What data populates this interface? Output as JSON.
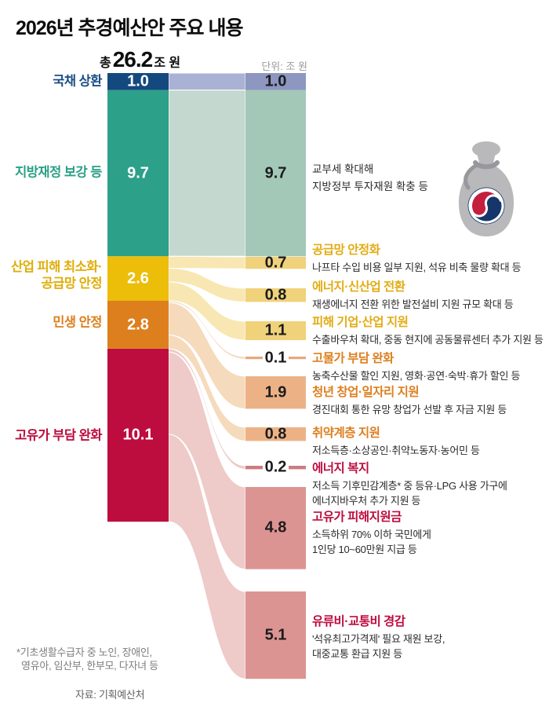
{
  "title": "2026년 추경예산안 주요 내용",
  "header": {
    "total_prefix": "총",
    "total_value": "26.2",
    "total_suffix": "조 원",
    "unit": "단위: 조 원"
  },
  "footnote": {
    "line1": "*기초생활수급자 중 노인, 장애인,",
    "line2": "영유아, 임산부, 한부모, 다자녀 등",
    "source": "자료: 기획예산처"
  },
  "icon": {
    "name": "money-bag-korea-gov-emblem",
    "bag_color": "#b9b9bc",
    "tie_color": "#98989c",
    "emblem_navy": "#16366b",
    "emblem_red": "#c41f3e"
  },
  "chart_data": {
    "type": "sankey",
    "title": "2026년 추경예산안 주요 내용",
    "total_label": "총 26.2조 원",
    "total": 26.2,
    "unit_label": "단위: 조 원",
    "sources": [
      {
        "label": "국채 상환",
        "label_lines": [
          "국채 상환"
        ],
        "value": 1.0,
        "display": "1.0",
        "color": "#14497f",
        "label_color": "#1b4f85",
        "flow_color": "#a9b2d4",
        "right_color": "#8d97c0",
        "heading_color": "#1b4f85"
      },
      {
        "label": "지방재정 보강 등",
        "label_lines": [
          "지방재정 보강 등"
        ],
        "value": 9.7,
        "display": "9.7",
        "color": "#2da089",
        "label_color": "#2aa085",
        "flow_color": "#c4d8cf",
        "right_color": "#a3c8b7",
        "heading_color": "#2aa085"
      },
      {
        "label": "산업 피해 최소화·공급망 안정",
        "label_lines": [
          "산업 피해 최소화·",
          "공급망 안정"
        ],
        "value": 2.6,
        "display": "2.6",
        "color": "#ecbe0a",
        "label_color": "#dfae0b",
        "flow_color": "#f8e7b2",
        "right_color": "#f0d27b",
        "heading_color": "#e2ac14"
      },
      {
        "label": "민생 안정",
        "label_lines": [
          "민생 안정"
        ],
        "value": 2.8,
        "display": "2.8",
        "color": "#dd7f1d",
        "label_color": "#dd7f1e",
        "flow_color": "#f5dabc",
        "right_color": "#ecb286",
        "heading_color": "#dd7f1e"
      },
      {
        "label": "고유가 부담 완화",
        "label_lines": [
          "고유가 부담 완화"
        ],
        "value": 10.1,
        "display": "10.1",
        "color": "#bd0d3f",
        "label_color": "#bd0d3f",
        "flow_color": "#eecac8",
        "right_color": "#dc9492",
        "heading_color": "#bd0d3f"
      }
    ],
    "targets": [
      {
        "source": 0,
        "value": 1.0,
        "display": "1.0",
        "heading": "",
        "desc": []
      },
      {
        "source": 1,
        "value": 9.7,
        "display": "9.7",
        "heading": "",
        "desc": [
          "교부세 확대해",
          "지방정부 투자재원 확충 등"
        ]
      },
      {
        "source": 2,
        "value": 0.7,
        "display": "0.7",
        "heading": "공급망 안정화",
        "desc": [
          "나프타 수입 비용 일부 지원, 석유 비축 물량 확대 등"
        ]
      },
      {
        "source": 2,
        "value": 0.8,
        "display": "0.8",
        "heading": "에너지·신산업 전환",
        "desc": [
          "재생에너지 전환 위한 발전설비 지원 규모 확대 등"
        ]
      },
      {
        "source": 2,
        "value": 1.1,
        "display": "1.1",
        "heading": "피해 기업·산업 지원",
        "desc": [
          "수출바우처 확대, 중동 현지에 공동물류센터 추가 지원 등"
        ]
      },
      {
        "source": 3,
        "value": 0.1,
        "display": "0.1",
        "heading": "고물가 부담 완화",
        "desc": [
          "농축수산물 할인 지원, 영화·공연·숙박·휴가 할인 등"
        ],
        "bar_color": "#e7a87b"
      },
      {
        "source": 3,
        "value": 1.9,
        "display": "1.9",
        "heading": "청년 창업·일자리 지원",
        "desc": [
          "경진대회 통한 유망 창업가 선발 후 자금 지원 등"
        ]
      },
      {
        "source": 3,
        "value": 0.8,
        "display": "0.8",
        "heading": "취약계층 지원",
        "desc": [
          "저소득층·소상공인·취약노동자·농어민 등"
        ]
      },
      {
        "source": 4,
        "value": 0.2,
        "display": "0.2",
        "heading": "에너지 복지",
        "desc": [
          "저소득 기후민감계층* 중 등유·LPG 사용 가구에",
          "에너지바우처 추가 지원 등"
        ],
        "bar_color": "#ca7e81"
      },
      {
        "source": 4,
        "value": 4.8,
        "display": "4.8",
        "heading": "고유가 피해지원금",
        "desc": [
          "소득하위 70% 이하 국민에게",
          "1인당 10~60만원 지급 등"
        ]
      },
      {
        "source": 4,
        "value": 5.1,
        "display": "5.1",
        "heading": "유류비·교통비 경감",
        "desc": [
          "'석유최고가격제' 필요 재원 보강,",
          "대중교통 환급 지원 등"
        ]
      }
    ]
  }
}
